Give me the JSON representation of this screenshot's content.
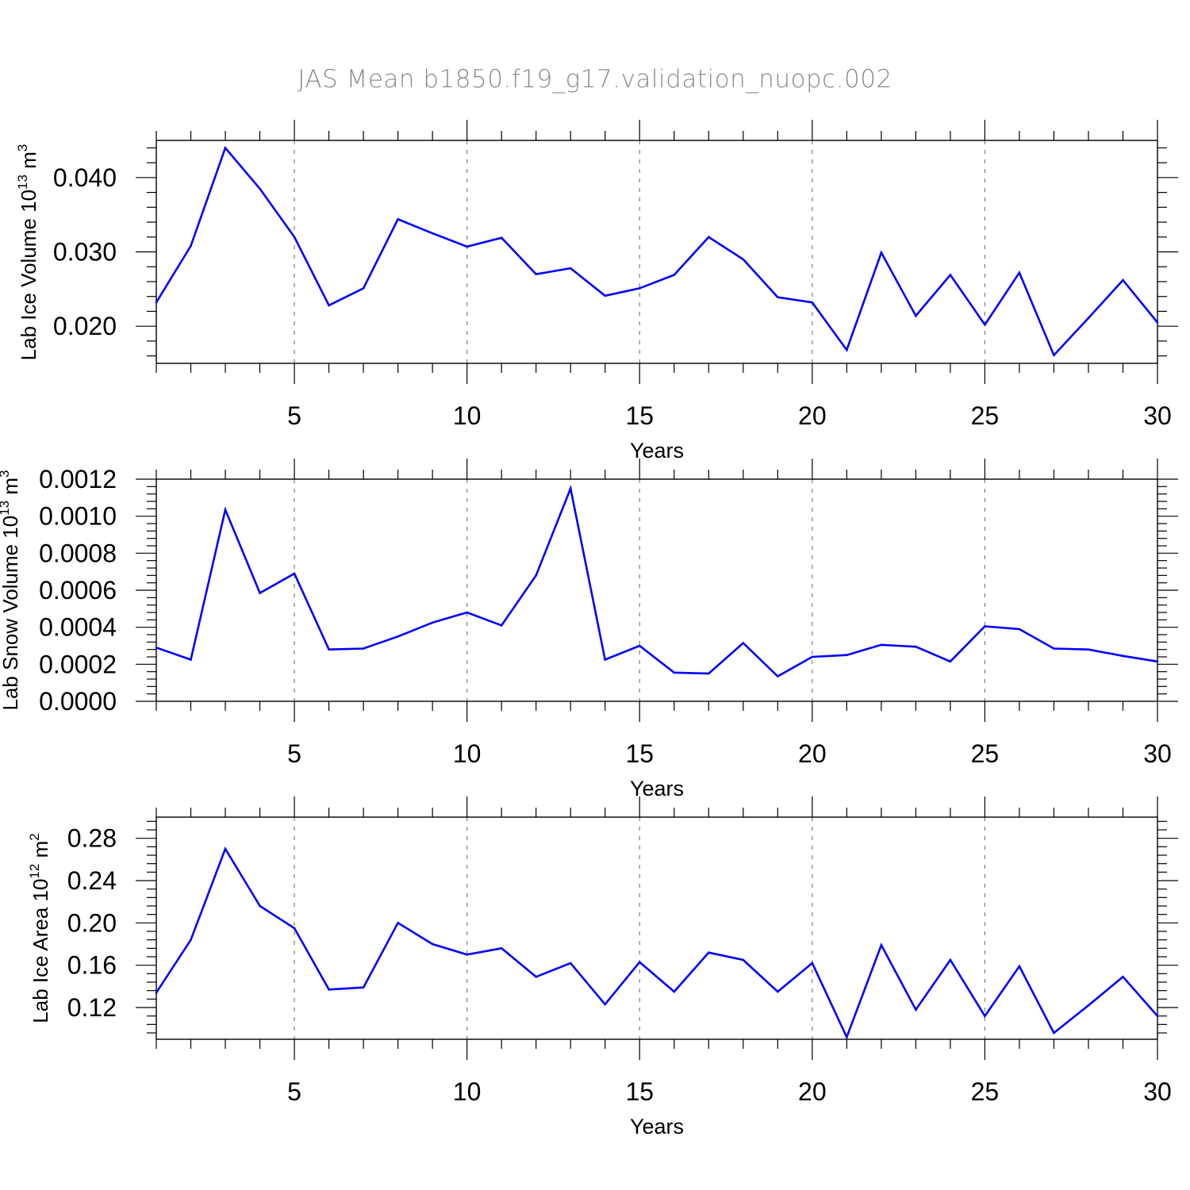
{
  "figure_title": "JAS Mean b1850.f19_g17.validation_nuopc.002",
  "colors": {
    "line": "#0000ff",
    "axis": "#000000",
    "grid": "#808080",
    "title": "#8a8a8a"
  },
  "chart_data": [
    {
      "type": "line",
      "title": "",
      "xlabel": "Years",
      "ylabel": "Lab Ice Volume 10",
      "ylabel_sup": "13",
      "ylabel_unit": " m",
      "ylabel_unit_sup": "3",
      "xlim": [
        1,
        30
      ],
      "ylim": [
        0.015,
        0.045
      ],
      "xticks": [
        5,
        10,
        15,
        20,
        25,
        30
      ],
      "xtick_labels": [
        "5",
        "10",
        "15",
        "20",
        "25",
        "30"
      ],
      "yticks": [
        0.02,
        0.03,
        0.04
      ],
      "ytick_labels": [
        "0.020",
        "0.030",
        "0.040"
      ],
      "ygrid": false,
      "xgrid_dashed": [
        5,
        10,
        15,
        20,
        25
      ],
      "x": [
        1,
        2,
        3,
        4,
        5,
        6,
        7,
        8,
        9,
        10,
        11,
        12,
        13,
        14,
        15,
        16,
        17,
        18,
        19,
        20,
        21,
        22,
        23,
        24,
        25,
        26,
        27,
        28,
        29,
        30
      ],
      "values": [
        0.0232,
        0.0308,
        0.044,
        0.0385,
        0.032,
        0.0228,
        0.0251,
        0.0344,
        0.0325,
        0.0307,
        0.0319,
        0.027,
        0.0278,
        0.0241,
        0.0251,
        0.0269,
        0.032,
        0.029,
        0.0239,
        0.0232,
        0.0168,
        0.0299,
        0.0214,
        0.0269,
        0.0202,
        0.0272,
        0.0161,
        0.0211,
        0.0262,
        0.0205
      ]
    },
    {
      "type": "line",
      "title": "",
      "xlabel": "Years",
      "ylabel": "Lab Snow Volume 10",
      "ylabel_sup": "13",
      "ylabel_unit": " m",
      "ylabel_unit_sup": "3",
      "xlim": [
        1,
        30
      ],
      "ylim": [
        0.0,
        0.0012
      ],
      "xticks": [
        5,
        10,
        15,
        20,
        25,
        30
      ],
      "xtick_labels": [
        "5",
        "10",
        "15",
        "20",
        "25",
        "30"
      ],
      "yticks": [
        0.0,
        0.0002,
        0.0004,
        0.0006,
        0.0008,
        0.001,
        0.0012
      ],
      "ytick_labels": [
        "0.0000",
        "0.0002",
        "0.0004",
        "0.0006",
        "0.0008",
        "0.0010",
        "0.0012"
      ],
      "xgrid_dashed": [
        5,
        10,
        15,
        20,
        25
      ],
      "x": [
        1,
        2,
        3,
        4,
        5,
        6,
        7,
        8,
        9,
        10,
        11,
        12,
        13,
        14,
        15,
        16,
        17,
        18,
        19,
        20,
        21,
        22,
        23,
        24,
        25,
        26,
        27,
        28,
        29,
        30
      ],
      "values": [
        0.00029,
        0.000225,
        0.001035,
        0.000585,
        0.00069,
        0.00028,
        0.000285,
        0.00035,
        0.000425,
        0.00048,
        0.00041,
        0.00068,
        0.00115,
        0.000225,
        0.0003,
        0.000155,
        0.00015,
        0.000315,
        0.000135,
        0.00024,
        0.00025,
        0.000305,
        0.000295,
        0.000215,
        0.000405,
        0.00039,
        0.000285,
        0.00028,
        0.000245,
        0.000215
      ]
    },
    {
      "type": "line",
      "title": "",
      "xlabel": "Years",
      "ylabel": "Lab Ice Area 10",
      "ylabel_sup": "12",
      "ylabel_unit": " m",
      "ylabel_unit_sup": "2",
      "xlim": [
        1,
        30
      ],
      "ylim": [
        0.09,
        0.3
      ],
      "xticks": [
        5,
        10,
        15,
        20,
        25,
        30
      ],
      "xtick_labels": [
        "5",
        "10",
        "15",
        "20",
        "25",
        "30"
      ],
      "yticks": [
        0.12,
        0.16,
        0.2,
        0.24,
        0.28
      ],
      "ytick_labels": [
        "0.12",
        "0.16",
        "0.20",
        "0.24",
        "0.28"
      ],
      "xgrid_dashed": [
        5,
        10,
        15,
        20,
        25
      ],
      "x": [
        1,
        2,
        3,
        4,
        5,
        6,
        7,
        8,
        9,
        10,
        11,
        12,
        13,
        14,
        15,
        16,
        17,
        18,
        19,
        20,
        21,
        22,
        23,
        24,
        25,
        26,
        27,
        28,
        29,
        30
      ],
      "values": [
        0.134,
        0.184,
        0.27,
        0.216,
        0.195,
        0.137,
        0.139,
        0.2,
        0.18,
        0.17,
        0.176,
        0.149,
        0.162,
        0.123,
        0.163,
        0.135,
        0.172,
        0.165,
        0.135,
        0.162,
        0.092,
        0.179,
        0.118,
        0.165,
        0.112,
        0.159,
        0.096,
        0.122,
        0.149,
        0.112
      ]
    }
  ]
}
